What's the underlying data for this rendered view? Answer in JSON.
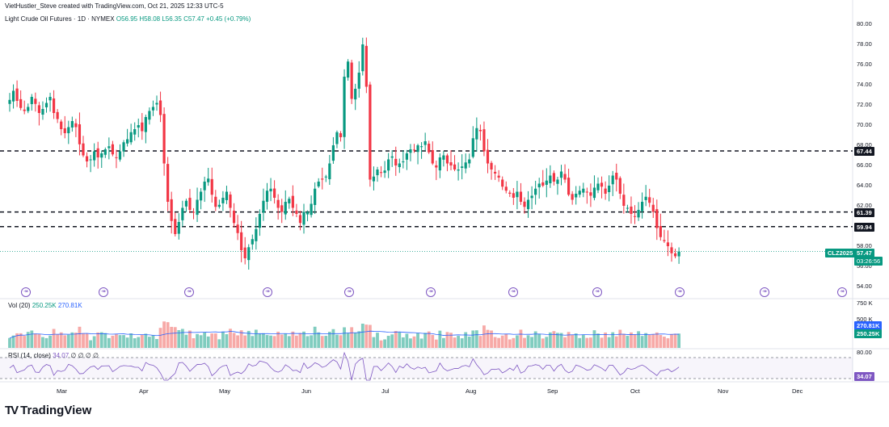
{
  "header": {
    "created_by": "VietHustler_Steve created with TradingView.com, Oct 21, 2025 12:33 UTC-5",
    "symbol_title": "Light Crude Oil Futures · 1D · NYMEX",
    "open": "O56.95",
    "high": "H58.08",
    "low": "L56.35",
    "close": "C57.47",
    "change": "+0.45 (+0.79%)"
  },
  "price_axis": [
    "80.00",
    "78.00",
    "76.00",
    "74.00",
    "72.00",
    "70.00",
    "68.00",
    "66.00",
    "64.00",
    "62.00",
    "60.00",
    "58.00",
    "56.00",
    "54.00"
  ],
  "levels": [
    {
      "value": 67.44,
      "label": "67.44"
    },
    {
      "value": 61.39,
      "label": "61.39"
    },
    {
      "value": 59.94,
      "label": "59.94"
    }
  ],
  "last_price": {
    "symbol": "CLZ2025",
    "price": "57.47",
    "countdown": "03:26:56",
    "value": 57.47
  },
  "volume": {
    "label": "Vol (20)",
    "v1": "250.25K",
    "v2": "270.81K",
    "axis": [
      "750 K",
      "500 K"
    ],
    "tag1": "270.81K",
    "tag2": "250.25K"
  },
  "rsi": {
    "label": "RSI (14, close)",
    "value": "34.07",
    "tail": "∅ ∅ ∅ ∅",
    "axis_top": "80.00",
    "tag": "34.07"
  },
  "months": [
    "Mar",
    "Apr",
    "May",
    "Jun",
    "Jul",
    "Aug",
    "Sep",
    "Oct",
    "Nov",
    "Dec"
  ],
  "brand": "TradingView",
  "colors": {
    "up": "#089981",
    "down": "#f23645",
    "rsi": "#7e57c2",
    "ma": "#2962ff"
  },
  "chart_data": {
    "type": "candlestick",
    "series": [
      {
        "name": "Light Crude Oil Futures",
        "close": [
          72.5,
          73.4,
          72.4,
          71.7,
          71.4,
          71.8,
          72.8,
          72.1,
          71.2,
          71.6,
          72.2,
          72.8,
          71.2,
          70.6,
          69.6,
          69.2,
          69.8,
          70.4,
          69.8,
          68.1,
          67.0,
          66.4,
          66.6,
          67.4,
          66.8,
          67.2,
          67.6,
          67.9,
          67.1,
          66.8,
          67.4,
          68.3,
          68.6,
          69.3,
          69.6,
          70.0,
          69.4,
          70.8,
          71.4,
          71.8,
          72.2,
          71.0,
          66.2,
          62.4,
          60.5,
          59.2,
          60.4,
          61.8,
          62.5,
          61.6,
          61.4,
          62.6,
          63.4,
          64.4,
          64.7,
          63.1,
          61.9,
          62.1,
          62.8,
          63.4,
          61.8,
          60.3,
          59.3,
          57.6,
          56.8,
          57.9,
          58.7,
          59.7,
          61.2,
          62.5,
          63.5,
          63.7,
          62.8,
          61.8,
          61.4,
          62.4,
          62.7,
          61.8,
          61.2,
          60.3,
          61.4,
          61.4,
          62.2,
          63.7,
          64.4,
          64.6,
          64.9,
          66.2,
          68.0,
          69.3,
          68.8,
          74.8,
          76.3,
          72.6,
          73.6,
          75.2,
          78.0,
          73.8,
          64.6,
          64.9,
          65.6,
          65.3,
          65.5,
          66.6,
          66.9,
          66.0,
          66.2,
          66.4,
          67.2,
          67.6,
          67.5,
          68.0,
          67.9,
          68.4,
          67.3,
          66.2,
          65.8,
          66.8,
          67.0,
          66.2,
          66.0,
          65.6,
          65.6,
          65.9,
          66.3,
          66.6,
          68.7,
          69.7,
          69.4,
          67.4,
          66.2,
          65.6,
          65.2,
          64.8,
          63.9,
          63.5,
          63.2,
          62.8,
          63.4,
          62.4,
          61.9,
          62.6,
          63.0,
          63.7,
          64.2,
          64.0,
          64.5,
          65.0,
          64.4,
          64.6,
          65.4,
          64.6,
          63.1,
          62.6,
          63.2,
          63.5,
          63.7,
          63.4,
          63.0,
          63.8,
          64.2,
          63.9,
          63.2,
          64.0,
          65.0,
          64.6,
          63.2,
          62.0,
          61.8,
          61.2,
          60.9,
          61.6,
          62.4,
          62.9,
          62.3,
          61.4,
          59.8,
          58.9,
          58.5,
          58.0,
          57.3,
          57.0,
          57.47
        ]
      }
    ],
    "ylim": [
      54,
      80
    ],
    "x_ticks": [
      "Mar",
      "Apr",
      "May",
      "Jun",
      "Jul",
      "Aug",
      "Sep",
      "Oct",
      "Nov",
      "Dec"
    ]
  }
}
